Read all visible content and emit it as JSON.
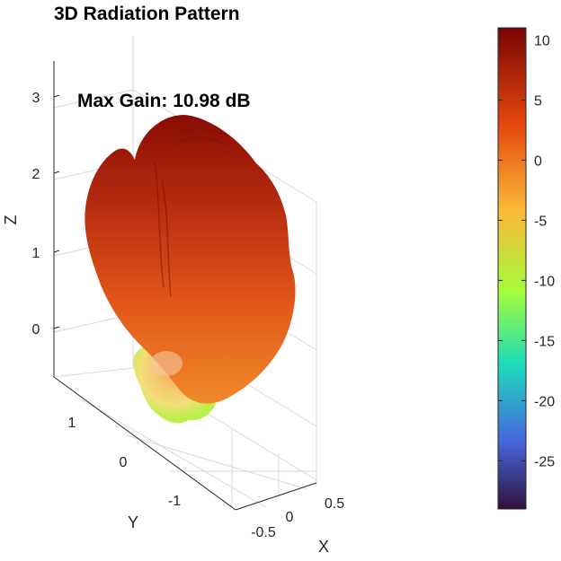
{
  "chart_data": {
    "type": "surface3d",
    "title": "3D Radiation Pattern",
    "annotation": "Max Gain: 10.98 dB",
    "axes": {
      "x": {
        "label": "X",
        "ticks": [
          "-0.5",
          "0",
          "0.5"
        ]
      },
      "y": {
        "label": "Y",
        "ticks": [
          "1",
          "0",
          "-1"
        ]
      },
      "z": {
        "label": "Z",
        "ticks": [
          "3",
          "2",
          "1",
          "0"
        ]
      }
    },
    "grid": true,
    "max_gain_db": 10.98,
    "colorbar": {
      "range": [
        -29,
        11
      ],
      "ticks": [
        10,
        5,
        0,
        -5,
        -10,
        -15,
        -20,
        -25
      ],
      "tick_labels": [
        "10",
        "5",
        "0",
        "-5",
        "-10",
        "-15",
        "-20",
        "-25"
      ],
      "colormap": [
        "#30123b",
        "#4666dd",
        "#1cdcba",
        "#a4fc3c",
        "#fbb938",
        "#e4470f",
        "#7a0403"
      ]
    }
  }
}
